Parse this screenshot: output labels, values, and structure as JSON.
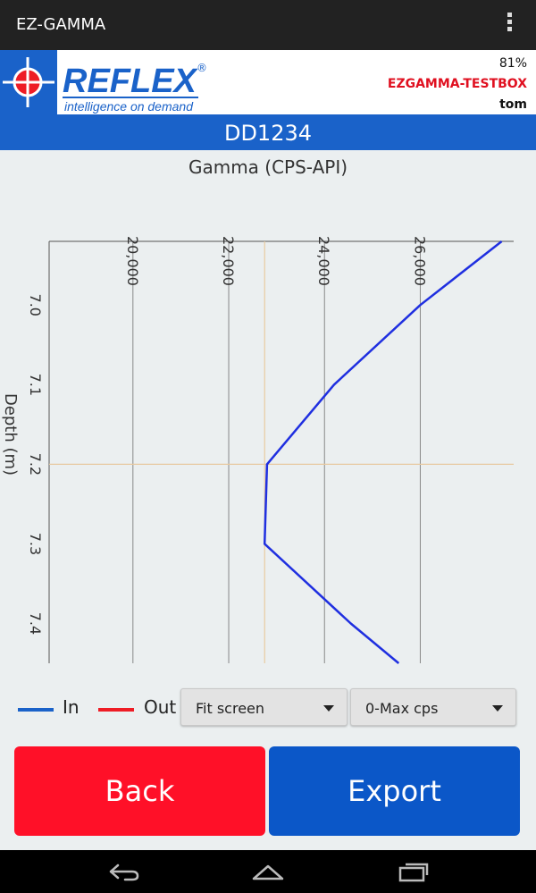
{
  "app": {
    "title": "EZ-GAMMA"
  },
  "header": {
    "brand": "REFLEX",
    "registered": "®",
    "tagline": "intelligence on demand",
    "battery": "81%",
    "device": "EZGAMMA-TESTBOX",
    "user": "tom"
  },
  "banner": {
    "hole_id": "DD1234"
  },
  "colors": {
    "accent_blue": "#1a62c9",
    "in_series": "#1f2fe0",
    "out_series": "#ee1c25",
    "back_button": "#ff1028",
    "export_button": "#0b57c8"
  },
  "chart_data": {
    "type": "line",
    "title": "Gamma (CPS-API)",
    "xlabel": "Gamma (CPS-API)",
    "ylabel": "Depth (m)",
    "xlim": [
      18250,
      27950
    ],
    "ylim": [
      6.92,
      7.45
    ],
    "xticks": [
      20000,
      22000,
      24000,
      26000
    ],
    "xtick_labels": [
      "20,000",
      "22,000",
      "24,000",
      "26,000"
    ],
    "yticks": [
      7.0,
      7.1,
      7.2,
      7.3,
      7.4
    ],
    "ytick_labels": [
      "7.0",
      "7.1",
      "7.2",
      "7.3",
      "7.4"
    ],
    "crosshair": {
      "x": 22750,
      "y": 7.2
    },
    "series": [
      {
        "name": "In",
        "x": [
          27700,
          26000,
          24200,
          22800,
          22750,
          24550,
          25550
        ],
        "y": [
          6.92,
          7.0,
          7.1,
          7.2,
          7.3,
          7.4,
          7.45
        ]
      }
    ],
    "legend": [
      "In",
      "Out"
    ],
    "legend_position": "bottom-left",
    "grid": true
  },
  "controls": {
    "zoom_select": "Fit screen",
    "scale_select": "0-Max cps",
    "back_label": "Back",
    "export_label": "Export"
  },
  "icons": {
    "menu": "overflow-menu-icon",
    "nav_back": "back-icon",
    "nav_home": "home-icon",
    "nav_recent": "recent-apps-icon"
  }
}
